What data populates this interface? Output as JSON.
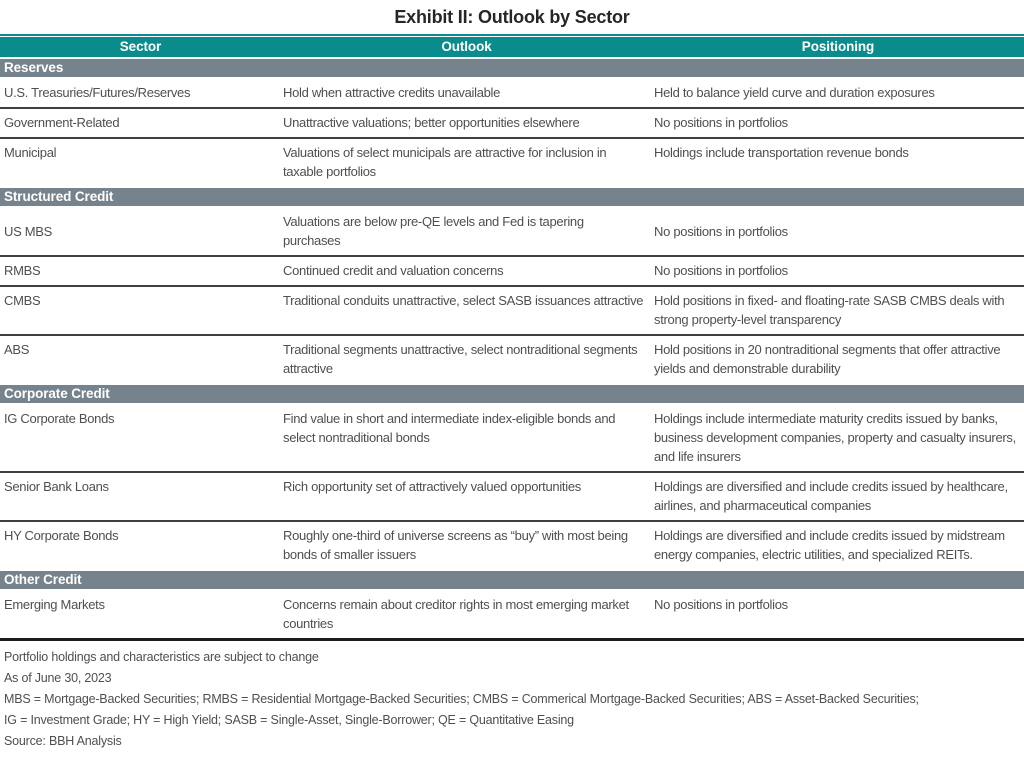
{
  "title": "Exhibit II: Outlook by Sector",
  "table": {
    "columns": [
      "Sector",
      "Outlook",
      "Positioning"
    ],
    "sections": [
      {
        "name": "Reserves",
        "rows": [
          {
            "sector": "U.S. Treasuries/Futures/Reserves",
            "outlook": "Hold when attractive credits unavailable",
            "positioning": "Held to balance yield curve and duration exposures"
          },
          {
            "sector": "Government-Related",
            "outlook": "Unattractive valuations; better opportunities elsewhere",
            "positioning": "No positions in portfolios"
          },
          {
            "sector": "Municipal",
            "outlook": "Valuations of select municipals are attractive for inclusion in taxable portfolios",
            "positioning": "Holdings include transportation revenue bonds"
          }
        ]
      },
      {
        "name": "Structured Credit",
        "rows": [
          {
            "sector": "US MBS",
            "outlook": "Valuations are below pre-QE levels and Fed is tapering purchases",
            "positioning": "No positions in portfolios",
            "valign": "middle"
          },
          {
            "sector": "RMBS",
            "outlook": "Continued credit and valuation concerns",
            "positioning": "No positions in portfolios"
          },
          {
            "sector": "CMBS",
            "outlook": "Traditional conduits unattractive, select SASB issuances attractive",
            "positioning": "Hold positions in fixed- and floating-rate SASB CMBS deals with strong property-level transparency"
          },
          {
            "sector": "ABS",
            "outlook": "Traditional segments unattractive, select nontraditional segments attractive",
            "positioning": "Hold positions in 20 nontraditional segments that offer attractive yields and demonstrable durability"
          }
        ]
      },
      {
        "name": "Corporate Credit",
        "rows": [
          {
            "sector": "IG Corporate Bonds",
            "outlook": "Find value in short and intermediate index-eligible bonds and select nontraditional bonds",
            "positioning": "Holdings include intermediate maturity credits issued by banks, business development companies, property and casualty insurers, and life insurers"
          },
          {
            "sector": "Senior Bank Loans",
            "outlook": "Rich opportunity set of attractively valued opportunities",
            "positioning": "Holdings are diversified and include credits issued by healthcare, airlines, and pharmaceutical companies"
          },
          {
            "sector": "HY Corporate Bonds",
            "outlook": "Roughly one-third of universe screens as “buy” with most being bonds of smaller issuers",
            "positioning": "Holdings are diversified and include credits issued by midstream energy companies, electric utilities, and specialized REITs."
          }
        ]
      },
      {
        "name": "Other Credit",
        "rows": [
          {
            "sector": "Emerging Markets",
            "outlook": "Concerns remain about creditor rights in most emerging market countries",
            "positioning": "No positions in portfolios"
          }
        ]
      }
    ]
  },
  "footnotes": [
    "Portfolio holdings and characteristics are subject to change",
    "As of June 30, 2023",
    "MBS = Mortgage-Backed Securities; RMBS = Residential Mortgage-Backed Securities; CMBS = Commerical Mortgage-Backed Securities; ABS = Asset-Backed Securities;",
    "IG = Investment Grade; HY = High Yield; SASB = Single-Asset, Single-Borrower; QE = Quantitative Easing",
    "Source: BBH Analysis"
  ],
  "colors": {
    "header_teal": "#0a8c8d",
    "section_gray": "#76838d",
    "body_text": "#4f4f4f",
    "title_text": "#262626",
    "row_border": "#3f3f3f"
  }
}
